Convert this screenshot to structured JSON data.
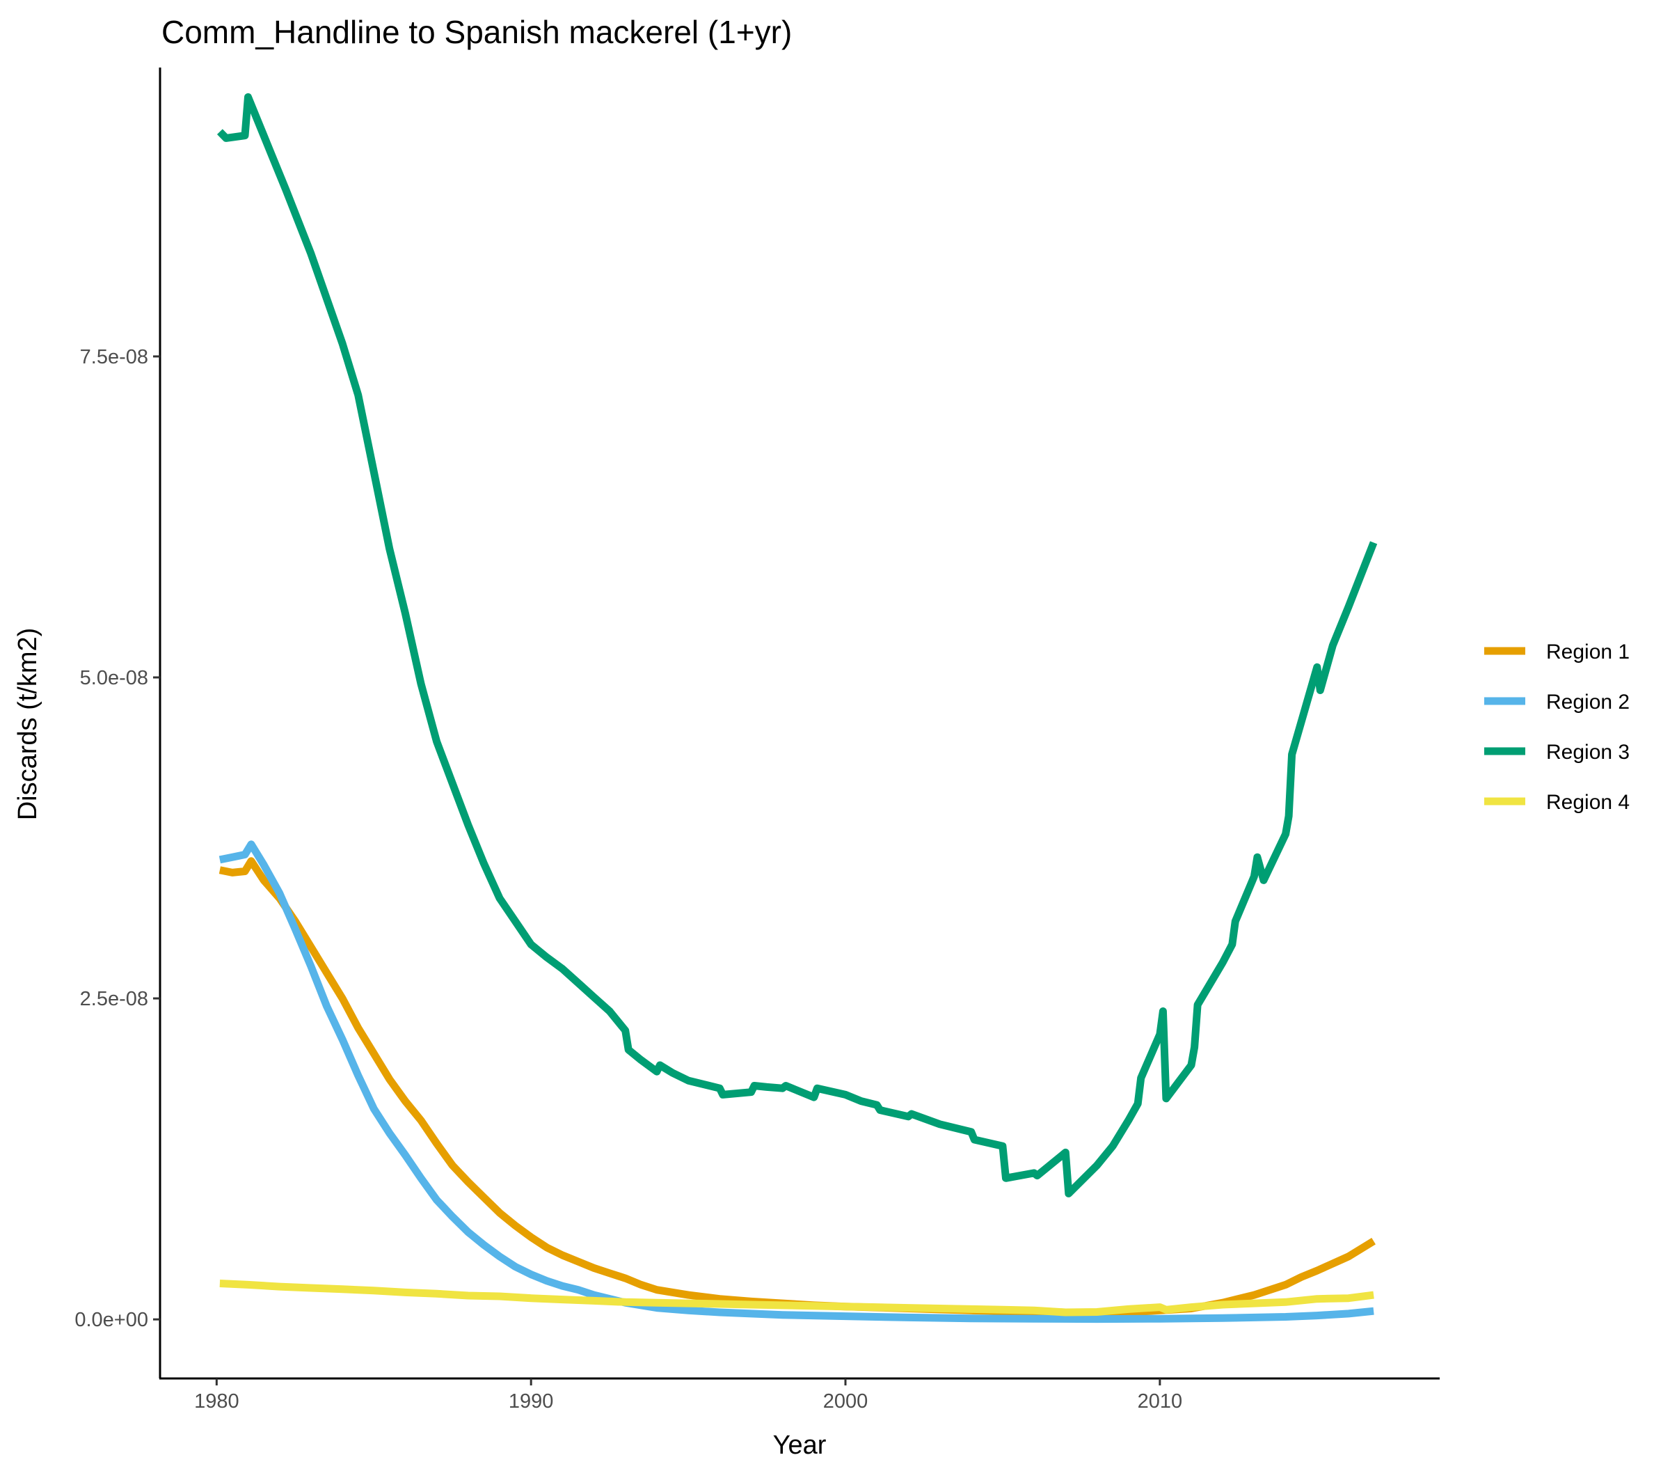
{
  "chart_data": {
    "type": "line",
    "title": "Comm_Handline to Spanish mackerel (1+yr)",
    "xlabel": "Year",
    "ylabel": "Discards (t/km2)",
    "xlim": [
      1978.2,
      2018.9
    ],
    "ylim": [
      -4.6e-09,
      9.75e-08
    ],
    "x_ticks": [
      1980,
      1990,
      2000,
      2010
    ],
    "x_tick_labels": [
      "1980",
      "1990",
      "2000",
      "2010"
    ],
    "y_ticks": [
      0,
      2.5e-08,
      5e-08,
      7.5e-08
    ],
    "y_tick_labels": [
      "0.0e+00",
      "2.5e-08",
      "5.0e-08",
      "7.5e-08"
    ],
    "grid": false,
    "legend_position": "right",
    "series": [
      {
        "name": "Region 1",
        "color": "#E69F00",
        "points": [
          [
            1980.1,
            3.5e-08
          ],
          [
            1980.5,
            3.48e-08
          ],
          [
            1980.9,
            3.49e-08
          ],
          [
            1981.1,
            3.57e-08
          ],
          [
            1981.5,
            3.42e-08
          ],
          [
            1982,
            3.28e-08
          ],
          [
            1982.5,
            3.1e-08
          ],
          [
            1983,
            2.9e-08
          ],
          [
            1983.5,
            2.7e-08
          ],
          [
            1984,
            2.5e-08
          ],
          [
            1984.5,
            2.27e-08
          ],
          [
            1985,
            2.07e-08
          ],
          [
            1985.5,
            1.87e-08
          ],
          [
            1986,
            1.7e-08
          ],
          [
            1986.5,
            1.55e-08
          ],
          [
            1987,
            1.37e-08
          ],
          [
            1987.5,
            1.2e-08
          ],
          [
            1988,
            1.07e-08
          ],
          [
            1988.5,
            9.5e-09
          ],
          [
            1989,
            8.3e-09
          ],
          [
            1989.5,
            7.3e-09
          ],
          [
            1990,
            6.4e-09
          ],
          [
            1990.5,
            5.6e-09
          ],
          [
            1991,
            5e-09
          ],
          [
            1991.5,
            4.5e-09
          ],
          [
            1992,
            4e-09
          ],
          [
            1992.5,
            3.6e-09
          ],
          [
            1993,
            3.2e-09
          ],
          [
            1993.5,
            2.7e-09
          ],
          [
            1994,
            2.3e-09
          ],
          [
            1995,
            1.9e-09
          ],
          [
            1996,
            1.6e-09
          ],
          [
            1997,
            1.4e-09
          ],
          [
            1998,
            1.25e-09
          ],
          [
            1999,
            1.1e-09
          ],
          [
            2000,
            1e-09
          ],
          [
            2002,
            8.5e-10
          ],
          [
            2004,
            7e-10
          ],
          [
            2005,
            6.5e-10
          ],
          [
            2006,
            6e-10
          ],
          [
            2007,
            5e-10
          ],
          [
            2009,
            5.5e-10
          ],
          [
            2010,
            7e-10
          ],
          [
            2011,
            8.5e-10
          ],
          [
            2012,
            1.3e-09
          ],
          [
            2013,
            1.9e-09
          ],
          [
            2014,
            2.7e-09
          ],
          [
            2014.5,
            3.3e-09
          ],
          [
            2015,
            3.8e-09
          ],
          [
            2016,
            4.9e-09
          ],
          [
            2016.8,
            6.1e-09
          ]
        ]
      },
      {
        "name": "Region 2",
        "color": "#56B4E9",
        "points": [
          [
            1980.1,
            3.58e-08
          ],
          [
            1980.5,
            3.6e-08
          ],
          [
            1980.9,
            3.62e-08
          ],
          [
            1981.1,
            3.7e-08
          ],
          [
            1981.5,
            3.54e-08
          ],
          [
            1982,
            3.32e-08
          ],
          [
            1982.5,
            3.04e-08
          ],
          [
            1983,
            2.75e-08
          ],
          [
            1983.5,
            2.44e-08
          ],
          [
            1984,
            2.18e-08
          ],
          [
            1984.5,
            1.9e-08
          ],
          [
            1985,
            1.64e-08
          ],
          [
            1985.5,
            1.45e-08
          ],
          [
            1986,
            1.28e-08
          ],
          [
            1986.5,
            1.1e-08
          ],
          [
            1987,
            9.3e-09
          ],
          [
            1987.5,
            8e-09
          ],
          [
            1988,
            6.8e-09
          ],
          [
            1988.5,
            5.8e-09
          ],
          [
            1989,
            4.9e-09
          ],
          [
            1989.5,
            4.1e-09
          ],
          [
            1990,
            3.5e-09
          ],
          [
            1990.5,
            3e-09
          ],
          [
            1991,
            2.6e-09
          ],
          [
            1991.5,
            2.3e-09
          ],
          [
            1992,
            1.9e-09
          ],
          [
            1993,
            1.3e-09
          ],
          [
            1994,
            9e-10
          ],
          [
            1995,
            7e-10
          ],
          [
            1996,
            5.5e-10
          ],
          [
            1997,
            4.5e-10
          ],
          [
            1998,
            3.5e-10
          ],
          [
            2000,
            2.5e-10
          ],
          [
            2002,
            1.5e-10
          ],
          [
            2004,
            8e-11
          ],
          [
            2006,
            5e-11
          ],
          [
            2008,
            3e-11
          ],
          [
            2010,
            5e-11
          ],
          [
            2012,
            1e-10
          ],
          [
            2014,
            2e-10
          ],
          [
            2015,
            3e-10
          ],
          [
            2016,
            4.5e-10
          ],
          [
            2016.8,
            6.5e-10
          ]
        ]
      },
      {
        "name": "Region 3",
        "color": "#009E73",
        "points": [
          [
            1980.1,
            9.25e-08
          ],
          [
            1980.3,
            9.2e-08
          ],
          [
            1980.9,
            9.22e-08
          ],
          [
            1981.0,
            9.52e-08
          ],
          [
            1981.7,
            9.1e-08
          ],
          [
            1982.2,
            8.8e-08
          ],
          [
            1983,
            8.3e-08
          ],
          [
            1984,
            7.6e-08
          ],
          [
            1984.5,
            7.2e-08
          ],
          [
            1985,
            6.6e-08
          ],
          [
            1985.5,
            6e-08
          ],
          [
            1986,
            5.5e-08
          ],
          [
            1986.5,
            4.95e-08
          ],
          [
            1987,
            4.5e-08
          ],
          [
            1988,
            3.85e-08
          ],
          [
            1988.5,
            3.55e-08
          ],
          [
            1989,
            3.28e-08
          ],
          [
            1989.5,
            3.1e-08
          ],
          [
            1990,
            2.92e-08
          ],
          [
            1990.5,
            2.82e-08
          ],
          [
            1991,
            2.73e-08
          ],
          [
            1991.5,
            2.62e-08
          ],
          [
            1992,
            2.51e-08
          ],
          [
            1992.5,
            2.4e-08
          ],
          [
            1993,
            2.25e-08
          ],
          [
            1993.1,
            2.1e-08
          ],
          [
            1993.5,
            2.02e-08
          ],
          [
            1994,
            1.93e-08
          ],
          [
            1994.1,
            1.98e-08
          ],
          [
            1994.5,
            1.92e-08
          ],
          [
            1995,
            1.86e-08
          ],
          [
            1996,
            1.8e-08
          ],
          [
            1996.1,
            1.75e-08
          ],
          [
            1997,
            1.77e-08
          ],
          [
            1997.1,
            1.82e-08
          ],
          [
            1997.5,
            1.81e-08
          ],
          [
            1998,
            1.8e-08
          ],
          [
            1998.1,
            1.82e-08
          ],
          [
            1999,
            1.73e-08
          ],
          [
            1999.1,
            1.8e-08
          ],
          [
            2000,
            1.75e-08
          ],
          [
            2000.5,
            1.7e-08
          ],
          [
            2001,
            1.67e-08
          ],
          [
            2001.1,
            1.63e-08
          ],
          [
            2002,
            1.58e-08
          ],
          [
            2002.1,
            1.6e-08
          ],
          [
            2003,
            1.52e-08
          ],
          [
            2004,
            1.46e-08
          ],
          [
            2004.1,
            1.4e-08
          ],
          [
            2005,
            1.35e-08
          ],
          [
            2005.1,
            1.1e-08
          ],
          [
            2006,
            1.14e-08
          ],
          [
            2006.1,
            1.12e-08
          ],
          [
            2007,
            1.3e-08
          ],
          [
            2007.1,
            9.8e-09
          ],
          [
            2008,
            1.2e-08
          ],
          [
            2008.5,
            1.35e-08
          ],
          [
            2009,
            1.55e-08
          ],
          [
            2009.3,
            1.68e-08
          ],
          [
            2009.4,
            1.88e-08
          ],
          [
            2010,
            2.22e-08
          ],
          [
            2010.1,
            2.4e-08
          ],
          [
            2010.2,
            1.72e-08
          ],
          [
            2011,
            1.98e-08
          ],
          [
            2011.1,
            2.12e-08
          ],
          [
            2011.2,
            2.45e-08
          ],
          [
            2012,
            2.78e-08
          ],
          [
            2012.3,
            2.92e-08
          ],
          [
            2012.4,
            3.1e-08
          ],
          [
            2013,
            3.45e-08
          ],
          [
            2013.1,
            3.6e-08
          ],
          [
            2013.3,
            3.42e-08
          ],
          [
            2014,
            3.78e-08
          ],
          [
            2014.1,
            3.92e-08
          ],
          [
            2014.2,
            4.4e-08
          ],
          [
            2015,
            5.08e-08
          ],
          [
            2015.1,
            4.9e-08
          ],
          [
            2015.5,
            5.25e-08
          ],
          [
            2016,
            5.55e-08
          ],
          [
            2016.8,
            6.05e-08
          ]
        ]
      },
      {
        "name": "Region 4",
        "color": "#F0E442",
        "points": [
          [
            1980.1,
            2.8e-09
          ],
          [
            1981,
            2.7e-09
          ],
          [
            1982,
            2.55e-09
          ],
          [
            1983,
            2.45e-09
          ],
          [
            1984,
            2.35e-09
          ],
          [
            1985,
            2.25e-09
          ],
          [
            1986,
            2.1e-09
          ],
          [
            1987,
            2e-09
          ],
          [
            1988,
            1.85e-09
          ],
          [
            1989,
            1.8e-09
          ],
          [
            1990,
            1.65e-09
          ],
          [
            1991,
            1.55e-09
          ],
          [
            1992,
            1.45e-09
          ],
          [
            1993,
            1.35e-09
          ],
          [
            1994,
            1.3e-09
          ],
          [
            1995,
            1.25e-09
          ],
          [
            1996,
            1.2e-09
          ],
          [
            1997,
            1.15e-09
          ],
          [
            1998,
            1.1e-09
          ],
          [
            1999,
            1.05e-09
          ],
          [
            2000,
            1e-09
          ],
          [
            2001,
            9.5e-10
          ],
          [
            2002,
            9e-10
          ],
          [
            2003,
            8.5e-10
          ],
          [
            2004,
            8e-10
          ],
          [
            2005,
            7.5e-10
          ],
          [
            2006,
            7e-10
          ],
          [
            2007,
            5.5e-10
          ],
          [
            2008,
            5.8e-10
          ],
          [
            2009,
            8e-10
          ],
          [
            2010,
            9.5e-10
          ],
          [
            2010.2,
            7.5e-10
          ],
          [
            2011,
            9.5e-10
          ],
          [
            2012,
            1.15e-09
          ],
          [
            2013,
            1.25e-09
          ],
          [
            2014,
            1.35e-09
          ],
          [
            2015,
            1.6e-09
          ],
          [
            2016,
            1.65e-09
          ],
          [
            2016.8,
            1.9e-09
          ]
        ]
      }
    ]
  }
}
